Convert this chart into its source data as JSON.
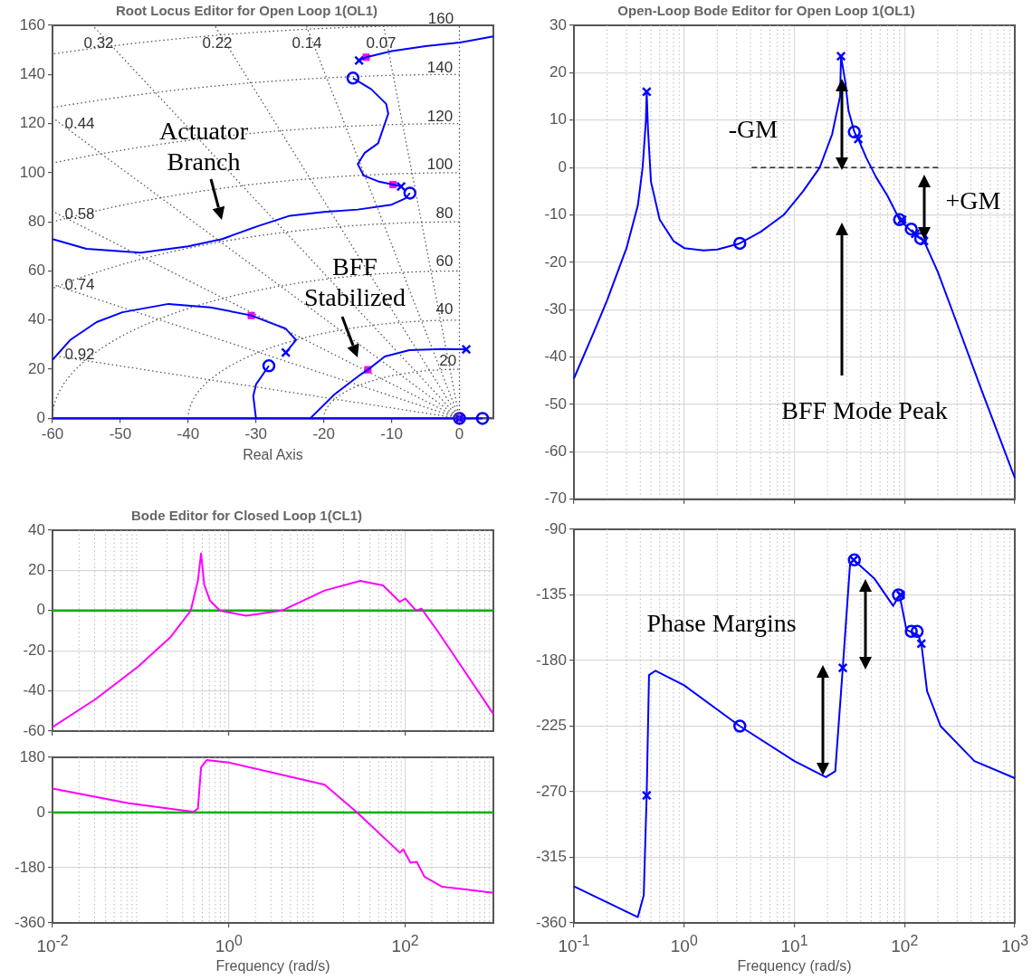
{
  "chart_data": [
    {
      "type": "line",
      "title": "Root Locus Editor for Open Loop 1(OL1)",
      "xlabel": "Real Axis",
      "xlim": [
        -60,
        5
      ],
      "ylim": [
        0,
        160
      ],
      "xticks": [
        -60,
        -50,
        -40,
        -30,
        -20,
        -10,
        0
      ],
      "yticks": [
        0,
        20,
        40,
        60,
        80,
        100,
        120,
        140,
        160
      ],
      "grid": true,
      "series": [
        {
          "type": "line",
          "color": "#555555",
          "line_style": "dotted",
          "marker": "none",
          "x": [
            0,
            0
          ],
          "values": [
            0,
            160
          ]
        },
        {
          "type": "line",
          "color": "#555555",
          "line_style": "dotted",
          "marker": "none",
          "x": [
            0,
            -11.2
          ],
          "values": [
            0,
            160
          ]
        },
        {
          "type": "line",
          "color": "#555555",
          "line_style": "dotted",
          "marker": "none",
          "x": [
            0,
            -22.6
          ],
          "values": [
            0,
            160
          ]
        },
        {
          "type": "line",
          "color": "#555555",
          "line_style": "dotted",
          "marker": "none",
          "x": [
            0,
            -36.1
          ],
          "values": [
            0,
            160
          ]
        },
        {
          "type": "line",
          "color": "#555555",
          "line_style": "dotted",
          "marker": "none",
          "x": [
            0,
            -54.1
          ],
          "values": [
            0,
            160
          ]
        },
        {
          "type": "line",
          "color": "#555555",
          "line_style": "dotted",
          "marker": "none",
          "x": [
            0,
            -60
          ],
          "values": [
            0,
            122.4
          ]
        },
        {
          "type": "line",
          "color": "#555555",
          "line_style": "dotted",
          "marker": "none",
          "x": [
            0,
            -60
          ],
          "values": [
            0,
            84.3
          ]
        },
        {
          "type": "line",
          "color": "#555555",
          "line_style": "dotted",
          "marker": "none",
          "x": [
            0,
            -60
          ],
          "values": [
            0,
            54.5
          ]
        },
        {
          "type": "line",
          "color": "#555555",
          "line_style": "dotted",
          "marker": "none",
          "x": [
            0,
            -60
          ],
          "values": [
            0,
            25.6
          ]
        },
        {
          "type": "line",
          "color": "#0000ff",
          "line_style": "solid",
          "marker": "none",
          "x": [
            -14.8,
            -13.75,
            -10,
            -5,
            0,
            5
          ],
          "values": [
            145.7,
            147,
            149.5,
            151.5,
            153,
            155.5
          ]
        },
        {
          "type": "line",
          "color": "#0000ff",
          "line_style": "solid",
          "marker": "none",
          "x": [
            -8.6,
            -9.8,
            -12,
            -14.1,
            -15,
            -14,
            -12,
            -10.5,
            -10.8,
            -13,
            -15.7
          ],
          "values": [
            94.4,
            95.2,
            96.5,
            98.8,
            103.5,
            108,
            112,
            124,
            128,
            134,
            138.5
          ]
        },
        {
          "type": "line",
          "color": "#0000ff",
          "line_style": "solid",
          "marker": "none",
          "x": [
            -7.3,
            -8,
            -10,
            -15,
            -20,
            -25,
            -30,
            -35,
            -40,
            -47,
            -55,
            -60
          ],
          "values": [
            91.7,
            89.5,
            87,
            85,
            84,
            82.5,
            78,
            73,
            70,
            67.5,
            69,
            73
          ]
        },
        {
          "type": "line",
          "color": "#0000ff",
          "line_style": "solid",
          "marker": "none",
          "x": [
            -60,
            -57.4,
            -53.5,
            -49.7,
            -42.9,
            -36.7,
            -30.7,
            -25.6,
            -24.1,
            -25.6
          ],
          "values": [
            23.8,
            31.9,
            39.2,
            43.2,
            46.6,
            45.2,
            41.9,
            36.5,
            31.9,
            26.8
          ]
        },
        {
          "type": "line",
          "color": "#0000ff",
          "line_style": "solid",
          "marker": "none",
          "x": [
            -28.1,
            -30,
            -30.4,
            -30
          ],
          "values": [
            21.4,
            13.8,
            9.1,
            0
          ]
        },
        {
          "type": "line",
          "color": "#0000ff",
          "line_style": "solid",
          "marker": "none",
          "x": [
            -22,
            -18.4,
            -14.6,
            -13.5,
            -11,
            -7.4,
            -2.5,
            1
          ],
          "values": [
            0,
            9.8,
            17.8,
            19.8,
            25.2,
            27.8,
            28.2,
            28.1
          ]
        },
        {
          "type": "line",
          "color": "#0000ff",
          "line_style": "solid",
          "marker": "none",
          "x": [
            -60,
            3.4
          ],
          "values": [
            0,
            0
          ]
        },
        {
          "type": "scatter",
          "color": "#0000ff",
          "marker": "cross",
          "x": [
            -14.8,
            -8.6,
            -25.6,
            1,
            0
          ],
          "values": [
            145.7,
            94.4,
            26.8,
            28.1,
            0
          ]
        },
        {
          "type": "scatter",
          "color": "#0000ff",
          "marker": "circle",
          "x": [
            -15.7,
            -7.3,
            -28.1,
            3.4,
            0
          ],
          "values": [
            138.5,
            91.7,
            21.4,
            0,
            0
          ]
        },
        {
          "type": "scatter",
          "color": "#ff00ff",
          "marker": "square",
          "x": [
            -13.75,
            -9.8,
            -30.7,
            -13.5,
            0
          ],
          "values": [
            147,
            95.2,
            41.9,
            19.8,
            0
          ]
        }
      ],
      "annotations": [
        "0.32",
        "0.22",
        "0.14",
        "0.07",
        "0.44",
        "0.58",
        "0.74",
        "0.92",
        "160",
        "140",
        "120",
        "100",
        "80",
        "60",
        "40",
        {
          "text": "20",
          "x": -1.7,
          "y": 23.4
        },
        "Actuator Branch",
        "BFF Stabilized"
      ]
    },
    {
      "type": "line",
      "title": "Open-Loop Bode Editor for Open Loop 1(OL1)",
      "log": "x",
      "grid": true,
      "tick_labels": "y",
      "xlim": [
        0.1,
        1000
      ],
      "ylim": [
        -70,
        30
      ],
      "xticks": [
        {
          "value": 0.1,
          "label": null
        },
        {
          "value": 1,
          "label": null
        },
        {
          "value": 10,
          "label": null
        },
        {
          "value": 100,
          "label": null
        },
        {
          "value": 1000,
          "label": null
        }
      ],
      "yticks": [
        -70,
        -60,
        -50,
        -40,
        -30,
        -20,
        -10,
        0,
        10,
        20,
        30
      ],
      "series": [
        {
          "type": "line",
          "color": "#0000ff",
          "line_style": "solid",
          "marker": "none",
          "x": [
            0.1,
            0.15,
            0.2,
            0.3,
            0.38,
            0.42,
            0.45,
            0.457,
            0.47,
            0.5,
            0.6,
            0.8,
            1,
            1.5,
            2,
            3.2,
            5,
            8,
            12,
            17,
            22,
            26,
            26.5,
            29,
            31,
            35,
            38,
            45,
            55,
            70,
            90,
            110,
            130,
            150,
            200,
            300,
            500,
            1000
          ],
          "values": [
            -44.5,
            -35,
            -28,
            -17,
            -8,
            0,
            10,
            16,
            8,
            -3,
            -11,
            -15.5,
            -17,
            -17.5,
            -17.3,
            -16,
            -13.5,
            -10,
            -5,
            0,
            7,
            15,
            23.5,
            18,
            12,
            7.5,
            6,
            2,
            -2,
            -6,
            -11,
            -13,
            -14.5,
            -15.5,
            -22,
            -33,
            -47,
            -65.5
          ]
        },
        {
          "type": "line",
          "color": "#000000",
          "line_style": "dashed",
          "marker": "none",
          "x": [
            4.1,
            212
          ],
          "values": [
            0,
            0
          ]
        },
        {
          "type": "scatter",
          "color": "#0000ff",
          "marker": "cross",
          "x": [
            0.457,
            26.5,
            38,
            95,
            125,
            150
          ],
          "values": [
            16,
            23.5,
            6,
            -11,
            -14,
            -15.5
          ]
        },
        {
          "type": "scatter",
          "color": "#0000ff",
          "marker": "circle",
          "x": [
            3.2,
            35,
            90,
            115,
            140
          ],
          "values": [
            -16,
            7.5,
            -11,
            -13,
            -15
          ]
        }
      ],
      "annotations": [
        "-GM",
        "+GM",
        "BFF Mode Peak"
      ]
    },
    {
      "type": "line",
      "xlabel": "Frequency (rad/s)",
      "log": "x",
      "grid": true,
      "xlim": [
        0.1,
        1000
      ],
      "ylim": [
        -360,
        -90
      ],
      "xticks": [
        {
          "value": 0.1,
          "label": "10$^{-1}$"
        },
        {
          "value": 1,
          "label": "10$^{0}$"
        },
        {
          "value": 10,
          "label": "10$^{1}$"
        },
        {
          "value": 100,
          "label": "10$^{2}$"
        },
        {
          "value": 1000,
          "label": "10$^{3}$"
        }
      ],
      "yticks": [
        -360,
        -315,
        -270,
        -225,
        -180,
        -135,
        -90
      ],
      "series": [
        {
          "type": "line",
          "color": "#0000ff",
          "line_style": "solid",
          "marker": "none",
          "x": [
            0.1,
            0.38,
            0.43,
            0.457,
            0.48,
            0.55,
            1,
            3.2,
            10,
            19.3,
            23.5,
            27.5,
            32,
            34.5,
            53,
            78.8,
            90,
            104,
            133,
            142,
            160,
            212,
            430,
            1000
          ],
          "values": [
            -335,
            -356,
            -341,
            -272.5,
            -190,
            -187,
            -197,
            -225,
            -249,
            -260,
            -256,
            -185,
            -114,
            -111,
            -123.6,
            -142.5,
            -135,
            -159,
            -162.6,
            -168.5,
            -201,
            -225,
            -249,
            -260.7
          ]
        },
        {
          "type": "scatter",
          "color": "#0000ff",
          "marker": "cross",
          "x": [
            0.457,
            27.5,
            34.5,
            92,
            142
          ],
          "values": [
            -272.5,
            -185,
            -111,
            -135,
            -168.5
          ]
        },
        {
          "type": "scatter",
          "color": "#0000ff",
          "marker": "circle",
          "x": [
            3.2,
            35,
            88,
            115,
            130
          ],
          "values": [
            -225,
            -111,
            -135,
            -160,
            -160
          ]
        }
      ],
      "annotations": [
        "Phase Margins"
      ]
    },
    {
      "type": "line",
      "title": "Bode Editor for Closed Loop 1(CL1)",
      "log": "x",
      "grid": true,
      "tick_labels": "y",
      "xlim": [
        0.01,
        1000
      ],
      "ylim": [
        -60,
        40
      ],
      "xticks": [
        {
          "value": 0.01,
          "label": null
        },
        {
          "value": 1,
          "label": null
        },
        {
          "value": 100,
          "label": null
        }
      ],
      "yticks": [
        -60,
        -40,
        -20,
        0,
        20,
        40
      ],
      "ref_lines": [
        {
          "axis": "y",
          "value": 0,
          "color": "#00b000"
        }
      ],
      "series": [
        {
          "type": "line",
          "color": "#ff00ff",
          "line_style": "solid",
          "marker": "none",
          "x": [
            0.01,
            0.031,
            0.093,
            0.22,
            0.37,
            0.446,
            0.484,
            0.525,
            0.61,
            0.79,
            1.57,
            4,
            12.2,
            31,
            56,
            87,
            100,
            133,
            153,
            240,
            1000
          ],
          "values": [
            -58,
            -44,
            -28,
            -13,
            0,
            15,
            28.4,
            13,
            5,
            0,
            -2.6,
            0,
            10,
            14.8,
            12.5,
            4.3,
            6,
            0,
            1,
            -11,
            -51.5
          ]
        }
      ]
    },
    {
      "type": "line",
      "xlabel": "Frequency (rad/s)",
      "log": "x",
      "grid": true,
      "xlim": [
        0.01,
        1000
      ],
      "ylim": [
        -360,
        180
      ],
      "xticks": [
        {
          "value": 0.01,
          "label": "10$^{-2}$"
        },
        {
          "value": 1,
          "label": "10$^{0}$"
        },
        {
          "value": 100,
          "label": "10$^{2}$"
        }
      ],
      "yticks": [
        -360,
        -180,
        0,
        180
      ],
      "ref_lines": [
        {
          "axis": "y",
          "value": 0,
          "color": "#00b000"
        }
      ],
      "series": [
        {
          "type": "line",
          "color": "#ff00ff",
          "line_style": "solid",
          "marker": "none",
          "x": [
            0.01,
            0.073,
            0.4,
            0.446,
            0.484,
            0.56,
            1,
            12.2,
            28.5,
            87,
            95,
            115,
            135,
            165,
            263,
            1000
          ],
          "values": [
            78,
            30,
            2,
            13,
            147,
            171,
            163,
            91,
            0,
            -131,
            -120,
            -164,
            -161,
            -209,
            -242,
            -262
          ]
        }
      ]
    }
  ]
}
